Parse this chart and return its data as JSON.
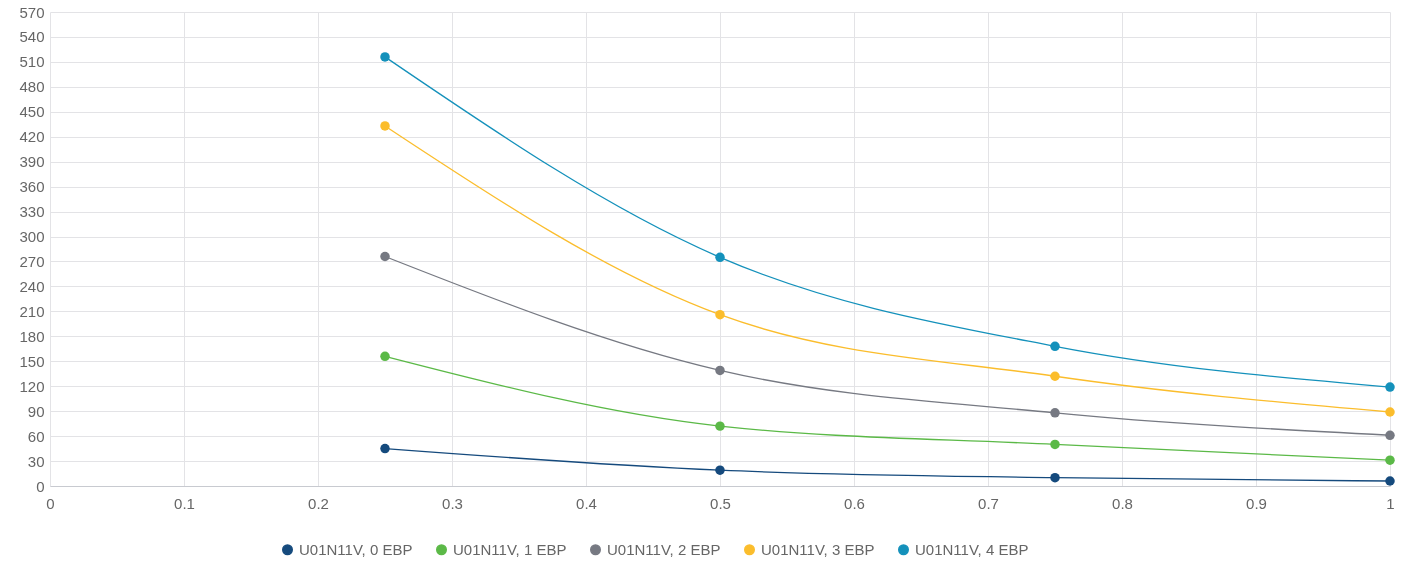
{
  "chart_data": {
    "type": "line",
    "x": [
      0.25,
      0.5,
      0.75,
      1
    ],
    "series": [
      {
        "name": "U01N11V, 0 EBP",
        "color": "#154a7d",
        "values": [
          45,
          19,
          10,
          6
        ]
      },
      {
        "name": "U01N11V, 1 EBP",
        "color": "#5bb947",
        "values": [
          156,
          72,
          50,
          31
        ]
      },
      {
        "name": "U01N11V, 2 EBP",
        "color": "#767982",
        "values": [
          276,
          139,
          88,
          61
        ]
      },
      {
        "name": "U01N11V, 3 EBP",
        "color": "#fbbd2c",
        "values": [
          433,
          206,
          132,
          89
        ]
      },
      {
        "name": "U01N11V, 4 EBP",
        "color": "#1491bb",
        "values": [
          516,
          275,
          168,
          119
        ]
      }
    ],
    "xlim": [
      0,
      1
    ],
    "xticks": [
      0,
      0.1,
      0.2,
      0.3,
      0.4,
      0.5,
      0.6,
      0.7,
      0.8,
      0.9,
      1
    ],
    "ylim": [
      0,
      570
    ],
    "yticks": [
      0,
      30,
      60,
      90,
      120,
      150,
      180,
      210,
      240,
      270,
      300,
      330,
      360,
      390,
      420,
      450,
      480,
      510,
      540,
      570
    ],
    "grid": true,
    "legend": "bottom",
    "marker": "circle",
    "line_style": "solid"
  }
}
